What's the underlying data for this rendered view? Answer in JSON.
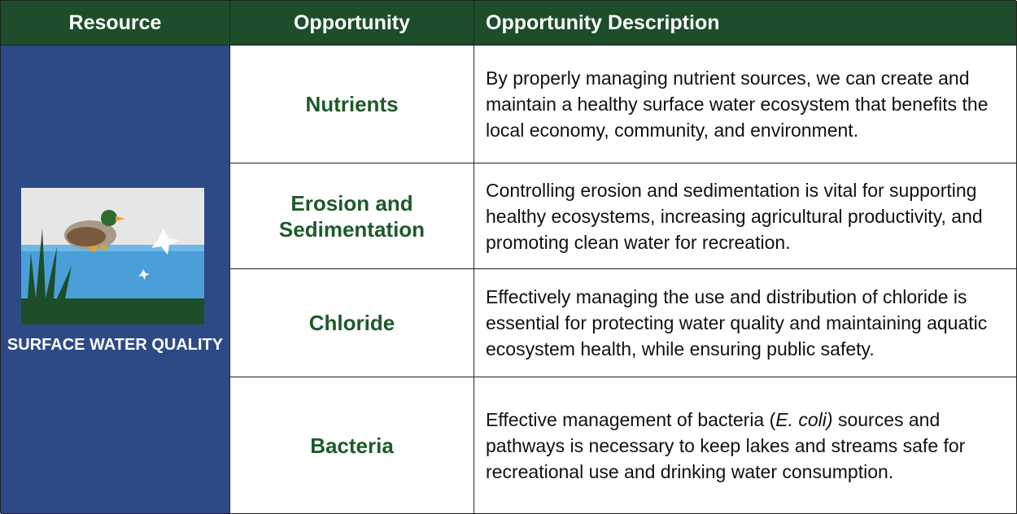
{
  "header": {
    "resource": "Resource",
    "opportunity": "Opportunity",
    "description": "Opportunity Description"
  },
  "resource": {
    "label": "SURFACE WATER QUALITY"
  },
  "rows": [
    {
      "opportunity": "Nutrients",
      "description": [
        {
          "text": "By properly managing nutrient sources, we can create and maintain a healthy surface water ecosystem that benefits the local economy, community, and environment."
        }
      ]
    },
    {
      "opportunity": "Erosion and Sedimentation",
      "description": [
        {
          "text": "Controlling erosion and sedimentation is vital for supporting healthy ecosystems, increasing agricultural productivity, and promoting clean water for recreation."
        }
      ]
    },
    {
      "opportunity": "Chloride",
      "description": [
        {
          "text": "Effectively managing the use and distribution of chloride is essential for protecting water quality and maintaining aquatic ecosystem health, while ensuring public safety."
        }
      ]
    },
    {
      "opportunity": "Bacteria",
      "description": [
        {
          "text": "Effective management of bacteria ("
        },
        {
          "text": "E. coli)",
          "italic": true
        },
        {
          "text": " sources and pathways is necessary to keep lakes and streams safe for recreational use and drinking water consumption."
        }
      ]
    }
  ]
}
